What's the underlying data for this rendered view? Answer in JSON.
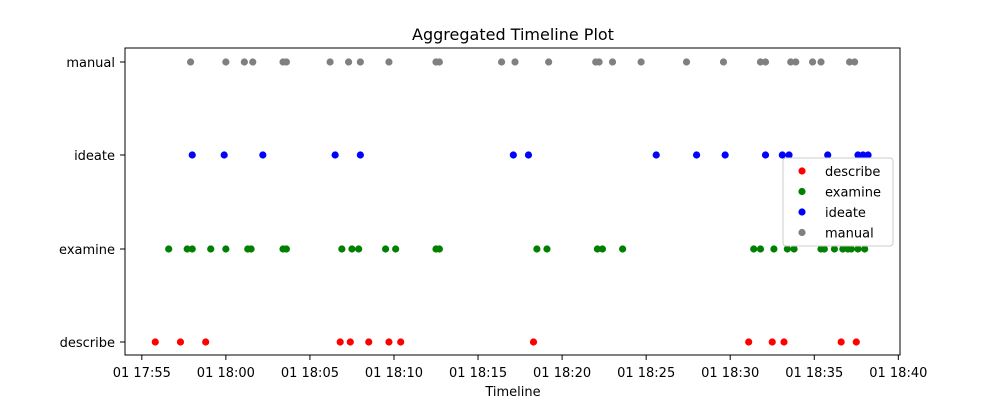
{
  "chart_data": {
    "type": "scatter",
    "title": "Aggregated Timeline Plot",
    "xlabel": "Timeline",
    "ylabel": "",
    "x_unit": "time (HH:MM, day 01)",
    "xlim": [
      "17:54:00",
      "18:40:06"
    ],
    "x_ticks": [
      "17:55",
      "18:00",
      "18:05",
      "18:10",
      "18:15",
      "18:20",
      "18:25",
      "18:30",
      "18:35",
      "18:40"
    ],
    "x_tick_labels": [
      "01 17:55",
      "01 18:00",
      "01 18:05",
      "01 18:10",
      "01 18:15",
      "01 18:20",
      "01 18:25",
      "01 18:30",
      "01 18:35",
      "01 18:40"
    ],
    "categories": [
      "describe",
      "examine",
      "ideate",
      "manual"
    ],
    "grid": false,
    "legend_position": "center-right",
    "series": [
      {
        "name": "describe",
        "color": "#ff0000",
        "x": [
          "17:55:48",
          "17:57:18",
          "17:58:48",
          "18:06:48",
          "18:07:24",
          "18:08:30",
          "18:09:42",
          "18:10:24",
          "18:18:18",
          "18:31:06",
          "18:32:30",
          "18:33:12",
          "18:36:36",
          "18:37:30"
        ]
      },
      {
        "name": "examine",
        "color": "#008000",
        "x": [
          "17:56:36",
          "17:57:42",
          "17:58:00",
          "17:59:06",
          "18:00:00",
          "18:01:18",
          "18:01:30",
          "18:03:24",
          "18:03:36",
          "18:06:54",
          "18:07:30",
          "18:07:54",
          "18:09:30",
          "18:10:06",
          "18:12:30",
          "18:12:42",
          "18:18:30",
          "18:19:06",
          "18:22:06",
          "18:22:24",
          "18:23:36",
          "18:31:24",
          "18:31:48",
          "18:32:36",
          "18:33:24",
          "18:33:48",
          "18:35:24",
          "18:35:36",
          "18:36:12",
          "18:36:42",
          "18:37:00",
          "18:37:12",
          "18:37:36",
          "18:38:00"
        ]
      },
      {
        "name": "ideate",
        "color": "#0000ff",
        "x": [
          "17:58:00",
          "17:59:54",
          "18:02:12",
          "18:06:30",
          "18:08:00",
          "18:17:06",
          "18:18:00",
          "18:25:36",
          "18:28:00",
          "18:29:42",
          "18:32:06",
          "18:33:06",
          "18:33:30",
          "18:35:48",
          "18:37:36",
          "18:37:54",
          "18:38:12"
        ]
      },
      {
        "name": "manual",
        "color": "#808080",
        "x": [
          "17:57:54",
          "18:00:00",
          "18:01:06",
          "18:01:36",
          "18:03:24",
          "18:03:36",
          "18:06:12",
          "18:07:18",
          "18:08:00",
          "18:09:42",
          "18:12:30",
          "18:12:42",
          "18:16:24",
          "18:17:12",
          "18:19:12",
          "18:22:00",
          "18:22:12",
          "18:23:00",
          "18:24:42",
          "18:27:24",
          "18:29:36",
          "18:31:48",
          "18:32:06",
          "18:33:36",
          "18:33:54",
          "18:34:54",
          "18:35:24",
          "18:37:06",
          "18:37:24"
        ]
      }
    ]
  }
}
